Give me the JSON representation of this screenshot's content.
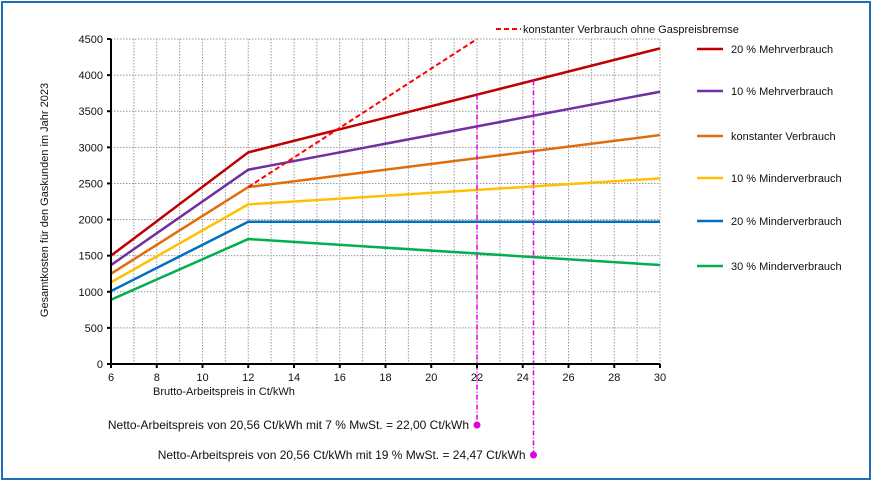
{
  "chart_data": {
    "type": "line",
    "title": "",
    "xlabel": "Brutto-Arbeitspreis in Ct/kWh",
    "ylabel": "Gesamtkosten für den Gaskunden im Jahr 2023",
    "xlim": [
      6,
      30
    ],
    "ylim": [
      0,
      4500
    ],
    "x_ticks": [
      6,
      8,
      10,
      12,
      14,
      16,
      18,
      20,
      22,
      24,
      26,
      28,
      30
    ],
    "y_ticks": [
      0,
      500,
      1000,
      1500,
      2000,
      2500,
      3000,
      3500,
      4000,
      4500
    ],
    "grid": true,
    "legend_placement": "right",
    "series": [
      {
        "name": "20 % Mehrverbrauch",
        "color": "#c00000",
        "x": [
          6,
          12,
          30
        ],
        "y": [
          1500,
          2930,
          4370
        ]
      },
      {
        "name": "10 % Mehrverbrauch",
        "color": "#7030a0",
        "x": [
          6,
          12,
          30
        ],
        "y": [
          1370,
          2690,
          3770
        ]
      },
      {
        "name": "konstanter Verbrauch",
        "color": "#e36c0a",
        "x": [
          6,
          12,
          30
        ],
        "y": [
          1250,
          2450,
          3170
        ]
      },
      {
        "name": "10 % Minderverbrauch",
        "color": "#ffc000",
        "x": [
          6,
          12,
          30
        ],
        "y": [
          1130,
          2210,
          2570
        ]
      },
      {
        "name": "20 % Minderverbrauch",
        "color": "#0070c0",
        "x": [
          6,
          12,
          30
        ],
        "y": [
          1010,
          1970,
          1970
        ]
      },
      {
        "name": "30 % Minderverbrauch",
        "color": "#00b050",
        "x": [
          6,
          12,
          30
        ],
        "y": [
          890,
          1730,
          1370
        ]
      }
    ],
    "dashed_series": {
      "name": "konstanter Verbrauch ohne Gaspreisbremse",
      "color": "#ff0000",
      "x": [
        12,
        22
      ],
      "y": [
        2450,
        4500
      ]
    },
    "annotations": [
      {
        "text": "Netto-Arbeitspreis von 20,56 Ct/kWh mit 7 % MwSt. = 22,00 Ct/kWh",
        "x": 22.0,
        "color": "#e000e0"
      },
      {
        "text": "Netto-Arbeitspreis von 20,56 Ct/kWh mit 19 % MwSt. = 24,47 Ct/kWh",
        "x": 24.47,
        "color": "#e000e0"
      }
    ]
  }
}
